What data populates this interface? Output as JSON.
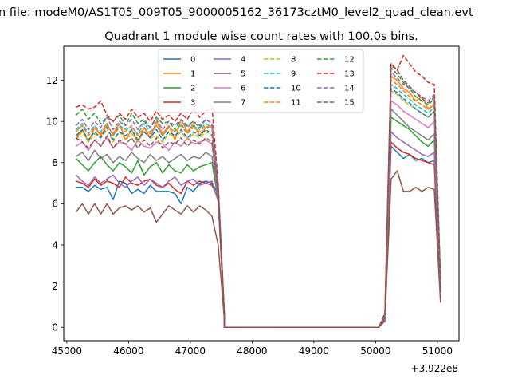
{
  "chart_data": {
    "type": "line",
    "suptitle": "n file: modeM0/AS1T05_009T05_9000005162_36173cztM0_level2_quad_clean.evt",
    "title": "Quadrant 1 module wise count rates with 100.0s bins.",
    "xlabel": "",
    "ylabel": "",
    "x_offset_label": "+3.922e8",
    "xlim": [
      44950,
      51350
    ],
    "ylim": [
      -0.65,
      13.65
    ],
    "x_ticks": [
      45000,
      46000,
      47000,
      48000,
      49000,
      50000,
      51000
    ],
    "x_tick_labels": [
      "45000",
      "46000",
      "47000",
      "48000",
      "49000",
      "50000",
      "51000"
    ],
    "y_ticks": [
      0,
      2,
      4,
      6,
      8,
      10,
      12
    ],
    "y_tick_labels": [
      "0",
      "2",
      "4",
      "6",
      "8",
      "10",
      "12"
    ],
    "grid": false,
    "legend_position": "upper-center",
    "legend_columns": 4,
    "x_segments": [
      {
        "start": 45150,
        "end": 47350,
        "step": 100
      },
      {
        "start": 47450,
        "end": 47550,
        "step": 100
      },
      {
        "start": 47550,
        "end": 50050,
        "step": 500
      },
      {
        "start": 50150,
        "end": 51050,
        "step": 100
      }
    ],
    "series": [
      {
        "name": "0",
        "color": "#1f77b4",
        "dash": "solid",
        "active": [
          6.8,
          6.8,
          6.6,
          6.9,
          6.7,
          6.8,
          6.2,
          7.1,
          7.0,
          6.5,
          6.7,
          6.5,
          6.9,
          6.6,
          6.6,
          6.6,
          6.5,
          6.0,
          6.8,
          6.6,
          7.0,
          7.1,
          7.0
        ],
        "drop": [
          6.5,
          0.5
        ],
        "zero_count": 6,
        "late": [
          0.4,
          8.8,
          8.5,
          8.2,
          8.4,
          8.1,
          8.2,
          8.0,
          8.1,
          1.6
        ]
      },
      {
        "name": "1",
        "color": "#ff7f0e",
        "dash": "solid",
        "active": [
          9.2,
          9.6,
          9.0,
          9.7,
          9.3,
          9.8,
          9.4,
          9.9,
          9.1,
          9.6,
          9.0,
          9.7,
          9.2,
          10.0,
          9.4,
          9.8,
          9.1,
          10.1,
          9.5,
          9.9,
          9.3,
          9.7,
          9.8
        ],
        "drop": [
          6.8,
          0.7
        ],
        "zero_count": 6,
        "late": [
          0.5,
          12.2,
          12.0,
          11.6,
          11.4,
          11.0,
          11.2,
          10.6,
          10.8,
          2.2
        ]
      },
      {
        "name": "2",
        "color": "#2ca02c",
        "dash": "solid",
        "active": [
          8.2,
          7.9,
          7.6,
          8.0,
          8.3,
          7.9,
          7.6,
          8.0,
          7.8,
          7.5,
          8.1,
          7.4,
          7.8,
          8.0,
          7.5,
          7.9,
          7.6,
          7.5,
          7.9,
          7.6,
          7.8,
          7.9,
          8.0
        ],
        "drop": [
          6.2,
          0.5
        ],
        "zero_count": 6,
        "late": [
          0.4,
          10.2,
          10.0,
          9.8,
          9.6,
          9.3,
          9.0,
          8.8,
          9.1,
          1.5
        ]
      },
      {
        "name": "3",
        "color": "#d62728",
        "dash": "solid",
        "active": [
          7.1,
          7.0,
          6.8,
          7.2,
          6.9,
          7.1,
          7.0,
          6.8,
          7.3,
          7.0,
          6.9,
          7.1,
          7.2,
          6.9,
          6.8,
          7.0,
          6.7,
          6.5,
          7.1,
          6.9,
          7.1,
          7.0,
          6.9
        ],
        "drop": [
          6.3,
          0.5
        ],
        "zero_count": 6,
        "late": [
          0.4,
          9.0,
          8.7,
          8.5,
          8.4,
          8.2,
          8.1,
          8.0,
          7.9,
          1.4
        ]
      },
      {
        "name": "4",
        "color": "#9467bd",
        "dash": "solid",
        "active": [
          7.4,
          7.1,
          6.9,
          7.3,
          7.0,
          7.2,
          7.4,
          7.0,
          6.8,
          7.1,
          7.3,
          6.9,
          7.2,
          7.0,
          6.8,
          7.1,
          7.3,
          6.9,
          7.1,
          7.2,
          6.9,
          7.0,
          7.1
        ],
        "drop": [
          6.1,
          0.5
        ],
        "zero_count": 6,
        "late": [
          0.4,
          9.5,
          9.2,
          9.0,
          8.8,
          8.6,
          8.4,
          8.3,
          8.5,
          1.5
        ]
      },
      {
        "name": "5",
        "color": "#8c564b",
        "dash": "solid",
        "active": [
          5.6,
          6.0,
          5.5,
          6.0,
          5.5,
          6.0,
          5.5,
          5.8,
          5.9,
          5.7,
          5.9,
          5.6,
          5.8,
          5.1,
          5.5,
          5.9,
          5.7,
          5.5,
          5.9,
          5.6,
          5.9,
          5.7,
          5.4
        ],
        "drop": [
          4.0,
          0.4
        ],
        "zero_count": 6,
        "late": [
          0.3,
          7.2,
          7.6,
          6.6,
          6.6,
          6.8,
          6.6,
          6.8,
          6.7,
          1.2
        ]
      },
      {
        "name": "6",
        "color": "#e377c2",
        "dash": "solid",
        "active": [
          8.8,
          9.0,
          8.6,
          9.1,
          8.8,
          9.2,
          8.7,
          9.0,
          8.9,
          8.6,
          9.1,
          8.8,
          8.7,
          9.0,
          8.9,
          8.6,
          9.0,
          8.8,
          9.2,
          8.9,
          9.0,
          9.1,
          8.9
        ],
        "drop": [
          6.4,
          0.6
        ],
        "zero_count": 6,
        "late": [
          0.5,
          11.0,
          10.8,
          10.5,
          10.3,
          10.1,
          9.9,
          9.7,
          10.0,
          1.8
        ]
      },
      {
        "name": "7",
        "color": "#7f7f7f",
        "dash": "solid",
        "active": [
          8.3,
          8.5,
          8.1,
          8.6,
          8.2,
          8.4,
          8.0,
          8.3,
          8.1,
          8.5,
          8.2,
          8.0,
          8.4,
          8.1,
          8.3,
          8.0,
          8.2,
          8.4,
          8.1,
          8.3,
          8.2,
          8.5,
          8.3
        ],
        "drop": [
          6.2,
          0.5
        ],
        "zero_count": 6,
        "late": [
          0.4,
          10.6,
          10.3,
          10.0,
          9.7,
          9.5,
          9.3,
          9.1,
          9.4,
          1.6
        ]
      },
      {
        "name": "8",
        "color": "#bcbd22",
        "dash": "dashed",
        "active": [
          9.1,
          9.5,
          9.0,
          9.4,
          9.2,
          9.6,
          9.0,
          9.5,
          9.1,
          9.4,
          9.0,
          9.5,
          9.2,
          9.3,
          9.0,
          9.4,
          9.2,
          9.5,
          9.1,
          9.4,
          9.2,
          9.5,
          9.3
        ],
        "drop": [
          6.6,
          0.6
        ],
        "zero_count": 6,
        "late": [
          0.5,
          11.5,
          11.3,
          11.0,
          10.8,
          10.6,
          10.4,
          10.2,
          10.5,
          1.9
        ]
      },
      {
        "name": "9",
        "color": "#17becf",
        "dash": "dashed",
        "active": [
          9.6,
          9.9,
          9.4,
          9.8,
          9.5,
          9.9,
          9.3,
          9.8,
          9.6,
          9.7,
          9.4,
          9.9,
          9.5,
          9.8,
          9.3,
          9.7,
          9.5,
          9.9,
          9.4,
          9.8,
          9.6,
          9.9,
          9.7
        ],
        "drop": [
          6.7,
          0.6
        ],
        "zero_count": 6,
        "late": [
          0.5,
          11.8,
          11.6,
          11.3,
          11.1,
          10.8,
          10.6,
          10.4,
          10.7,
          2.0
        ]
      },
      {
        "name": "10",
        "color": "#1f77b4",
        "dash": "dashed",
        "active": [
          9.3,
          9.6,
          9.1,
          9.5,
          9.2,
          9.7,
          9.1,
          9.5,
          9.3,
          9.6,
          9.1,
          9.5,
          9.2,
          9.6,
          9.1,
          9.5,
          9.3,
          9.6,
          9.2,
          9.5,
          9.3,
          9.6,
          9.4
        ],
        "drop": [
          6.6,
          0.6
        ],
        "zero_count": 6,
        "late": [
          0.5,
          11.6,
          11.4,
          11.1,
          10.9,
          10.6,
          10.4,
          10.2,
          10.5,
          1.9
        ]
      },
      {
        "name": "11",
        "color": "#ff7f0e",
        "dash": "dashed",
        "active": [
          9.5,
          9.8,
          9.3,
          9.7,
          9.4,
          9.9,
          9.3,
          9.7,
          9.5,
          9.8,
          9.3,
          9.7,
          9.4,
          9.8,
          9.3,
          9.7,
          9.5,
          9.8,
          9.4,
          9.7,
          9.5,
          9.8,
          9.6
        ],
        "drop": [
          6.8,
          0.6
        ],
        "zero_count": 6,
        "late": [
          0.5,
          12.0,
          11.8,
          11.5,
          11.2,
          11.0,
          10.8,
          10.6,
          10.9,
          2.1
        ]
      },
      {
        "name": "12",
        "color": "#2ca02c",
        "dash": "dashed",
        "active": [
          10.3,
          10.6,
          10.1,
          10.4,
          9.9,
          10.2,
          10.0,
          10.3,
          9.8,
          10.4,
          9.9,
          10.1,
          9.7,
          10.2,
          9.9,
          10.0,
          9.6,
          10.1,
          9.8,
          10.0,
          9.7,
          10.1,
          9.9
        ],
        "drop": [
          6.9,
          0.7
        ],
        "zero_count": 6,
        "late": [
          0.6,
          12.6,
          12.3,
          11.9,
          11.6,
          11.2,
          11.0,
          10.8,
          11.1,
          2.3
        ]
      },
      {
        "name": "13",
        "color": "#d62728",
        "dash": "dashed",
        "active": [
          10.7,
          10.8,
          10.6,
          10.7,
          11.0,
          10.3,
          10.0,
          10.4,
          10.1,
          10.6,
          10.2,
          10.4,
          10.0,
          10.5,
          10.1,
          10.3,
          10.0,
          10.4,
          10.1,
          10.6,
          10.2,
          10.5,
          10.7
        ],
        "drop": [
          7.0,
          0.7
        ],
        "zero_count": 6,
        "late": [
          0.7,
          12.8,
          12.5,
          13.2,
          12.8,
          12.4,
          12.2,
          11.9,
          11.8,
          2.4
        ]
      },
      {
        "name": "14",
        "color": "#9467bd",
        "dash": "dashed",
        "active": [
          9.8,
          10.1,
          9.6,
          10.0,
          9.7,
          10.2,
          9.6,
          10.0,
          9.8,
          10.1,
          9.6,
          10.0,
          9.7,
          10.1,
          9.6,
          10.0,
          9.8,
          10.1,
          9.7,
          10.0,
          9.8,
          10.1,
          9.9
        ],
        "drop": [
          6.8,
          0.6
        ],
        "zero_count": 6,
        "late": [
          0.6,
          12.4,
          12.1,
          11.8,
          11.6,
          11.4,
          11.2,
          11.0,
          11.3,
          2.2
        ]
      },
      {
        "name": "15",
        "color": "#8c564b",
        "dash": "dashed",
        "active": [
          9.2,
          9.0,
          8.7,
          9.1,
          8.8,
          9.3,
          8.7,
          9.1,
          8.9,
          9.2,
          8.7,
          9.1,
          8.8,
          9.2,
          8.7,
          9.0,
          8.9,
          9.2,
          8.8,
          9.1,
          8.9,
          9.2,
          9.0
        ],
        "drop": [
          6.5,
          0.6
        ],
        "zero_count": 6,
        "late": [
          0.5,
          12.7,
          12.5,
          12.0,
          11.7,
          11.4,
          11.1,
          10.9,
          11.2,
          1.7
        ]
      }
    ]
  }
}
